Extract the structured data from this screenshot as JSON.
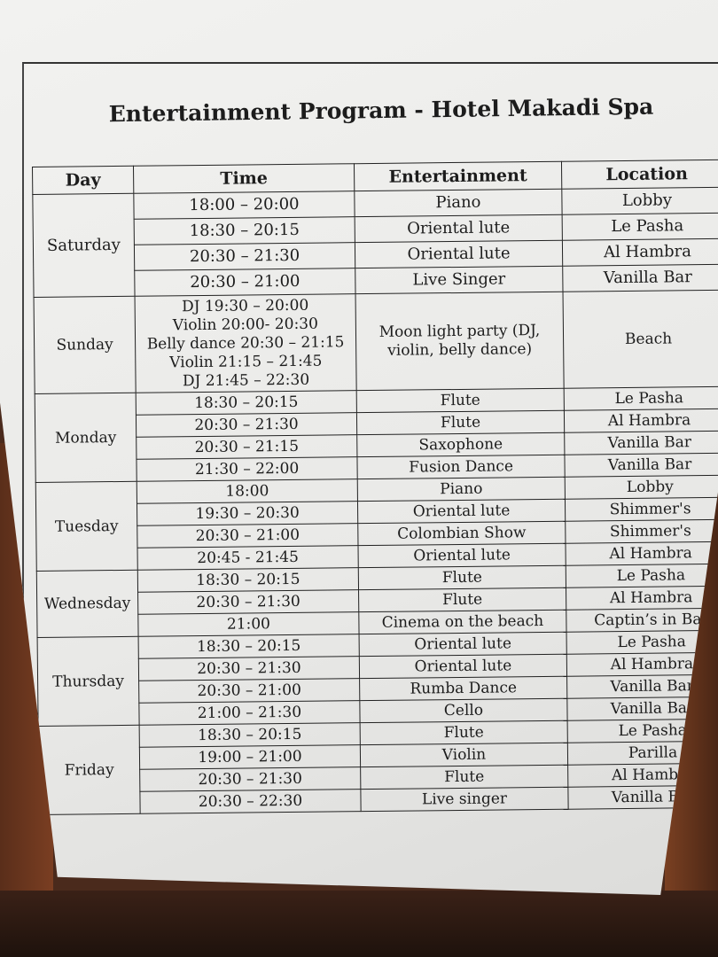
{
  "title": "Entertainment Program - Hotel Makadi Spa",
  "headers": [
    "Day",
    "Time",
    "Entertainment",
    "Location"
  ],
  "days": [
    {
      "day": "Saturday",
      "rows": [
        {
          "time": "18:00 – 20:00",
          "entertainment": "Piano",
          "location": "Lobby"
        },
        {
          "time": "18:30 – 20:15",
          "entertainment": "Oriental lute",
          "location": "Le Pasha"
        },
        {
          "time": "20:30 – 21:30",
          "entertainment": "Oriental lute",
          "location": "Al Hambra"
        },
        {
          "time": "20:30 – 21:00",
          "entertainment": "Live Singer",
          "location": "Vanilla Bar"
        }
      ]
    },
    {
      "day": "Sunday",
      "rows": [
        {
          "time": "DJ 19:30 – 20:00\nViolin 20:00- 20:30\nBelly dance 20:30 – 21:15\nViolin 21:15 – 21:45\nDJ 21:45 – 22:30",
          "entertainment": "Moon light party (DJ, violin, belly dance)",
          "location": "Beach"
        }
      ]
    },
    {
      "day": "Monday",
      "rows": [
        {
          "time": "18:30 – 20:15",
          "entertainment": "Flute",
          "location": "Le Pasha"
        },
        {
          "time": "20:30 – 21:30",
          "entertainment": "Flute",
          "location": "Al Hambra"
        },
        {
          "time": "20:30 – 21:15",
          "entertainment": "Saxophone",
          "location": "Vanilla Bar"
        },
        {
          "time": "21:30 – 22:00",
          "entertainment": "Fusion Dance",
          "location": "Vanilla Bar"
        }
      ]
    },
    {
      "day": "Tuesday",
      "rows": [
        {
          "time": "18:00",
          "entertainment": "Piano",
          "location": "Lobby"
        },
        {
          "time": "19:30 – 20:30",
          "entertainment": "Oriental lute",
          "location": "Shimmer's"
        },
        {
          "time": "20:30 – 21:00",
          "entertainment": "Colombian Show",
          "location": "Shimmer's"
        },
        {
          "time": "20:45 - 21:45",
          "entertainment": "Oriental lute",
          "location": "Al Hambra"
        }
      ]
    },
    {
      "day": "Wednesday",
      "rows": [
        {
          "time": "18:30 – 20:15",
          "entertainment": "Flute",
          "location": "Le Pasha"
        },
        {
          "time": "20:30 – 21:30",
          "entertainment": "Flute",
          "location": "Al Hambra"
        },
        {
          "time": "21:00",
          "entertainment": "Cinema on the beach",
          "location": "Captin’s in Bar"
        }
      ]
    },
    {
      "day": "Thursday",
      "rows": [
        {
          "time": "18:30 – 20:15",
          "entertainment": "Oriental lute",
          "location": "Le Pasha"
        },
        {
          "time": "20:30 – 21:30",
          "entertainment": "Oriental lute",
          "location": "Al Hambra"
        },
        {
          "time": "20:30 – 21:00",
          "entertainment": "Rumba Dance",
          "location": "Vanilla Bar"
        },
        {
          "time": "21:00 – 21:30",
          "entertainment": "Cello",
          "location": "Vanilla Bar"
        }
      ]
    },
    {
      "day": "Friday",
      "rows": [
        {
          "time": "18:30 – 20:15",
          "entertainment": "Flute",
          "location": "Le Pasha"
        },
        {
          "time": "19:00 – 21:00",
          "entertainment": "Violin",
          "location": "Parilla"
        },
        {
          "time": "20:30 – 21:30",
          "entertainment": "Flute",
          "location": "Al Hambra"
        },
        {
          "time": "20:30 – 22:30",
          "entertainment": "Live singer",
          "location": "Vanilla Bar"
        }
      ]
    }
  ]
}
